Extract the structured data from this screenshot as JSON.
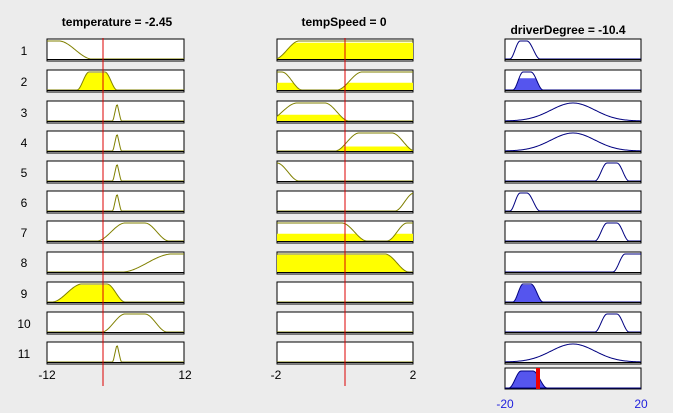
{
  "inputs": [
    {
      "title": "temperature = -2.45",
      "range_min_label": "-12",
      "range_max_label": "12"
    },
    {
      "title": "tempSpeed = 0",
      "range_min_label": "-2",
      "range_max_label": "2"
    }
  ],
  "output": {
    "title": "driverDegree = -10.4",
    "range_min_label": "-20",
    "range_max_label": "20"
  },
  "row_labels": [
    "1",
    "2",
    "3",
    "4",
    "5",
    "6",
    "7",
    "8",
    "9",
    "10",
    "11"
  ],
  "colors": {
    "background": "#ececec",
    "input_mf_line": "#808000",
    "input_fill": "#ffff00",
    "output_mf_line": "#000080",
    "output_fill": "#5555ee",
    "crosshair": "#dd0000",
    "output_marker": "#ee0000",
    "tick_label_output": "#2222dd"
  }
}
